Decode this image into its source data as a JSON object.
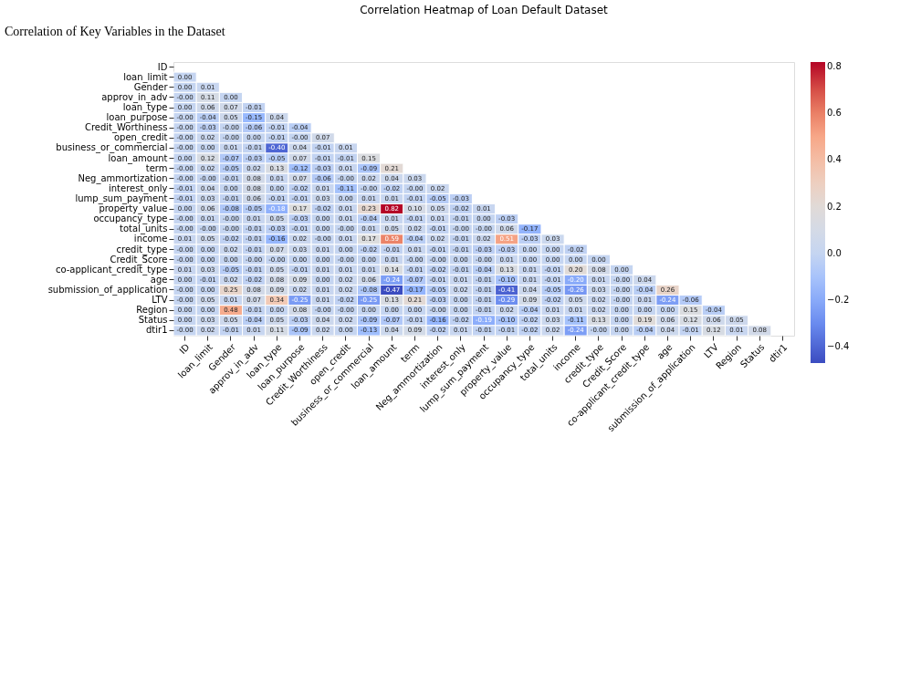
{
  "chart_data": {
    "type": "heatmap",
    "title": "Correlation Heatmap of Loan Default Dataset",
    "annotations": [
      "Correlation of Key Variables in the Dataset"
    ],
    "categories": [
      "ID",
      "loan_limit",
      "Gender",
      "approv_in_adv",
      "loan_type",
      "loan_purpose",
      "Credit_Worthiness",
      "open_credit",
      "business_or_commercial",
      "loan_amount",
      "term",
      "Neg_ammortization",
      "interest_only",
      "lump_sum_payment",
      "property_value",
      "occupancy_type",
      "total_units",
      "income",
      "credit_type",
      "Credit_Score",
      "co-applicant_credit_type",
      "age",
      "submission_of_application",
      "LTV",
      "Region",
      "Status",
      "dtir1"
    ],
    "y_categories": [
      "ID",
      "loan_limit",
      "Gender",
      "approv_in_adv",
      "loan_type",
      "loan_purpose",
      "Credit_Worthiness",
      "open_credit",
      "business_or_commercial",
      "loan_amount",
      "term",
      "Neg_ammortization",
      "interest_only",
      "lump_sum_payment",
      "property_value",
      "occupancy_type",
      "total_units",
      "income",
      "credit_type",
      "Credit_Score",
      "co-applicant_credit_type",
      "age",
      "submission_of_application",
      "LTV",
      "Region",
      "Status",
      "dtir1"
    ],
    "cells": [
      [
        null,
        null,
        null,
        null,
        null,
        null,
        null,
        null,
        null,
        null,
        null,
        null,
        null,
        null,
        null,
        null,
        null,
        null,
        null,
        null,
        null,
        null,
        null,
        null,
        null,
        null,
        null
      ],
      [
        0.0,
        null,
        null,
        null,
        null,
        null,
        null,
        null,
        null,
        null,
        null,
        null,
        null,
        null,
        null,
        null,
        null,
        null,
        null,
        null,
        null,
        null,
        null,
        null,
        null,
        null,
        null
      ],
      [
        0.0,
        0.01,
        null,
        null,
        null,
        null,
        null,
        null,
        null,
        null,
        null,
        null,
        null,
        null,
        null,
        null,
        null,
        null,
        null,
        null,
        null,
        null,
        null,
        null,
        null,
        null,
        null
      ],
      [
        0.0,
        0.11,
        0.0,
        null,
        null,
        null,
        null,
        null,
        null,
        null,
        null,
        null,
        null,
        null,
        null,
        null,
        null,
        null,
        null,
        null,
        null,
        null,
        null,
        null,
        null,
        null,
        null
      ],
      [
        0.0,
        0.06,
        0.07,
        -0.01,
        null,
        null,
        null,
        null,
        null,
        null,
        null,
        null,
        null,
        null,
        null,
        null,
        null,
        null,
        null,
        null,
        null,
        null,
        null,
        null,
        null,
        null,
        null
      ],
      [
        0.0,
        -0.04,
        0.05,
        -0.15,
        0.04,
        null,
        null,
        null,
        null,
        null,
        null,
        null,
        null,
        null,
        null,
        null,
        null,
        null,
        null,
        null,
        null,
        null,
        null,
        null,
        null,
        null,
        null
      ],
      [
        0.0,
        -0.03,
        0.0,
        -0.06,
        -0.01,
        -0.04,
        null,
        null,
        null,
        null,
        null,
        null,
        null,
        null,
        null,
        null,
        null,
        null,
        null,
        null,
        null,
        null,
        null,
        null,
        null,
        null,
        null
      ],
      [
        0.0,
        0.02,
        0.0,
        0.0,
        -0.01,
        0.0,
        0.07,
        null,
        null,
        null,
        null,
        null,
        null,
        null,
        null,
        null,
        null,
        null,
        null,
        null,
        null,
        null,
        null,
        null,
        null,
        null,
        null
      ],
      [
        0.0,
        0.0,
        0.01,
        -0.01,
        -0.4,
        0.04,
        -0.01,
        0.01,
        null,
        null,
        null,
        null,
        null,
        null,
        null,
        null,
        null,
        null,
        null,
        null,
        null,
        null,
        null,
        null,
        null,
        null,
        null
      ],
      [
        0.0,
        0.12,
        -0.07,
        -0.03,
        -0.05,
        0.07,
        -0.01,
        -0.01,
        0.15,
        null,
        null,
        null,
        null,
        null,
        null,
        null,
        null,
        null,
        null,
        null,
        null,
        null,
        null,
        null,
        null,
        null,
        null
      ],
      [
        0.0,
        0.02,
        -0.05,
        0.02,
        0.13,
        -0.12,
        -0.03,
        0.01,
        -0.09,
        0.21,
        null,
        null,
        null,
        null,
        null,
        null,
        null,
        null,
        null,
        null,
        null,
        null,
        null,
        null,
        null,
        null,
        null
      ],
      [
        0.0,
        0.0,
        -0.01,
        0.08,
        0.01,
        0.07,
        -0.06,
        0.0,
        0.02,
        0.04,
        0.03,
        null,
        null,
        null,
        null,
        null,
        null,
        null,
        null,
        null,
        null,
        null,
        null,
        null,
        null,
        null,
        null
      ],
      [
        -0.01,
        0.04,
        0.0,
        0.08,
        0.0,
        -0.02,
        0.01,
        -0.11,
        0.0,
        -0.02,
        0.0,
        0.02,
        null,
        null,
        null,
        null,
        null,
        null,
        null,
        null,
        null,
        null,
        null,
        null,
        null,
        null,
        null
      ],
      [
        -0.01,
        0.03,
        -0.01,
        0.06,
        -0.01,
        -0.01,
        0.03,
        0.0,
        0.01,
        0.01,
        -0.01,
        -0.05,
        -0.03,
        null,
        null,
        null,
        null,
        null,
        null,
        null,
        null,
        null,
        null,
        null,
        null,
        null,
        null
      ],
      [
        0.0,
        0.06,
        -0.08,
        -0.05,
        -0.18,
        0.17,
        -0.02,
        0.01,
        0.23,
        0.82,
        0.1,
        0.05,
        -0.02,
        0.01,
        null,
        null,
        null,
        null,
        null,
        null,
        null,
        null,
        null,
        null,
        null,
        null,
        null
      ],
      [
        0.0,
        0.01,
        0.0,
        0.01,
        0.05,
        -0.03,
        0.0,
        0.01,
        -0.04,
        0.01,
        -0.01,
        0.01,
        -0.01,
        0.0,
        -0.03,
        null,
        null,
        null,
        null,
        null,
        null,
        null,
        null,
        null,
        null,
        null,
        null
      ],
      [
        0.0,
        0.0,
        0.0,
        -0.01,
        -0.03,
        -0.01,
        0.0,
        0.0,
        0.01,
        0.05,
        0.02,
        -0.01,
        0.0,
        0.0,
        0.06,
        -0.17,
        null,
        null,
        null,
        null,
        null,
        null,
        null,
        null,
        null,
        null,
        null
      ],
      [
        0.01,
        0.05,
        -0.02,
        -0.01,
        -0.16,
        0.02,
        0.0,
        0.01,
        0.17,
        0.59,
        -0.04,
        0.02,
        -0.01,
        0.02,
        0.51,
        -0.03,
        0.03,
        null,
        null,
        null,
        null,
        null,
        null,
        null,
        null,
        null,
        null
      ],
      [
        0.0,
        0.0,
        0.02,
        -0.01,
        0.07,
        0.03,
        0.01,
        0.0,
        -0.02,
        -0.01,
        0.01,
        -0.01,
        -0.01,
        -0.03,
        -0.03,
        0.0,
        0.0,
        -0.02,
        null,
        null,
        null,
        null,
        null,
        null,
        null,
        null,
        null
      ],
      [
        0.0,
        0.0,
        0.0,
        0.0,
        0.0,
        0.0,
        0.0,
        0.0,
        0.0,
        0.01,
        0.0,
        0.0,
        0.0,
        0.0,
        0.01,
        0.0,
        0.0,
        0.0,
        0.0,
        null,
        null,
        null,
        null,
        null,
        null,
        null,
        null
      ],
      [
        0.01,
        0.03,
        -0.05,
        -0.01,
        0.05,
        -0.01,
        0.01,
        0.01,
        0.01,
        0.14,
        -0.01,
        -0.02,
        -0.01,
        -0.04,
        0.13,
        0.01,
        -0.01,
        0.2,
        0.08,
        0.0,
        null,
        null,
        null,
        null,
        null,
        null,
        null
      ],
      [
        0.0,
        -0.01,
        0.02,
        -0.02,
        0.08,
        0.09,
        0.0,
        0.02,
        0.06,
        -0.24,
        -0.07,
        -0.01,
        0.01,
        -0.01,
        -0.1,
        0.01,
        -0.01,
        -0.2,
        0.01,
        0.0,
        0.04,
        null,
        null,
        null,
        null,
        null,
        null
      ],
      [
        0.0,
        0.0,
        0.25,
        0.08,
        0.09,
        0.02,
        0.01,
        0.02,
        -0.08,
        -0.47,
        -0.17,
        -0.05,
        0.02,
        -0.01,
        -0.41,
        0.04,
        -0.05,
        -0.26,
        0.03,
        0.0,
        -0.04,
        0.26,
        null,
        null,
        null,
        null,
        null
      ],
      [
        0.0,
        0.05,
        0.01,
        0.07,
        0.34,
        -0.25,
        0.01,
        -0.02,
        -0.25,
        0.13,
        0.21,
        -0.03,
        0.0,
        -0.01,
        -0.29,
        0.09,
        -0.02,
        0.05,
        0.02,
        0.0,
        0.01,
        -0.24,
        -0.06,
        null,
        null,
        null,
        null
      ],
      [
        0.0,
        0.0,
        0.48,
        -0.01,
        0.0,
        0.08,
        0.0,
        0.0,
        0.0,
        0.0,
        0.0,
        0.0,
        0.0,
        -0.01,
        0.02,
        -0.04,
        0.01,
        0.01,
        0.02,
        0.0,
        0.0,
        0.0,
        0.15,
        -0.04,
        null,
        null,
        null
      ],
      [
        0.0,
        0.03,
        0.05,
        -0.04,
        0.05,
        -0.03,
        0.04,
        0.02,
        -0.09,
        -0.07,
        -0.01,
        -0.16,
        -0.02,
        -0.19,
        -0.1,
        -0.02,
        0.03,
        -0.11,
        0.13,
        0.0,
        0.19,
        0.06,
        0.12,
        0.06,
        0.05,
        null,
        null
      ],
      [
        0.0,
        0.02,
        -0.01,
        0.01,
        0.11,
        -0.09,
        0.02,
        0.0,
        -0.13,
        0.04,
        0.09,
        -0.02,
        0.01,
        -0.01,
        -0.01,
        -0.02,
        0.02,
        -0.24,
        0.0,
        0.0,
        -0.04,
        0.04,
        -0.01,
        0.12,
        0.01,
        0.08,
        null
      ]
    ],
    "cell_labels": [
      [
        null,
        null,
        null,
        null,
        null,
        null,
        null,
        null,
        null,
        null,
        null,
        null,
        null,
        null,
        null,
        null,
        null,
        null,
        null,
        null,
        null,
        null,
        null,
        null,
        null,
        null,
        null
      ],
      [
        "0.00",
        null,
        null,
        null,
        null,
        null,
        null,
        null,
        null,
        null,
        null,
        null,
        null,
        null,
        null,
        null,
        null,
        null,
        null,
        null,
        null,
        null,
        null,
        null,
        null,
        null,
        null
      ],
      [
        "0.00",
        "0.01",
        null,
        null,
        null,
        null,
        null,
        null,
        null,
        null,
        null,
        null,
        null,
        null,
        null,
        null,
        null,
        null,
        null,
        null,
        null,
        null,
        null,
        null,
        null,
        null,
        null
      ],
      [
        "-0.00",
        "0.11",
        "0.00",
        null,
        null,
        null,
        null,
        null,
        null,
        null,
        null,
        null,
        null,
        null,
        null,
        null,
        null,
        null,
        null,
        null,
        null,
        null,
        null,
        null,
        null,
        null,
        null
      ],
      [
        "0.00",
        "0.06",
        "0.07",
        "-0.01",
        null,
        null,
        null,
        null,
        null,
        null,
        null,
        null,
        null,
        null,
        null,
        null,
        null,
        null,
        null,
        null,
        null,
        null,
        null,
        null,
        null,
        null,
        null
      ],
      [
        "-0.00",
        "-0.04",
        "0.05",
        "-0.15",
        "0.04",
        null,
        null,
        null,
        null,
        null,
        null,
        null,
        null,
        null,
        null,
        null,
        null,
        null,
        null,
        null,
        null,
        null,
        null,
        null,
        null,
        null,
        null
      ],
      [
        "-0.00",
        "-0.03",
        "-0.00",
        "-0.06",
        "-0.01",
        "-0.04",
        null,
        null,
        null,
        null,
        null,
        null,
        null,
        null,
        null,
        null,
        null,
        null,
        null,
        null,
        null,
        null,
        null,
        null,
        null,
        null,
        null
      ],
      [
        "-0.00",
        "0.02",
        "-0.00",
        "0.00",
        "-0.01",
        "-0.00",
        "0.07",
        null,
        null,
        null,
        null,
        null,
        null,
        null,
        null,
        null,
        null,
        null,
        null,
        null,
        null,
        null,
        null,
        null,
        null,
        null,
        null
      ],
      [
        "-0.00",
        "0.00",
        "0.01",
        "-0.01",
        "-0.40",
        "0.04",
        "-0.01",
        "0.01",
        null,
        null,
        null,
        null,
        null,
        null,
        null,
        null,
        null,
        null,
        null,
        null,
        null,
        null,
        null,
        null,
        null,
        null,
        null
      ],
      [
        "0.00",
        "0.12",
        "-0.07",
        "-0.03",
        "-0.05",
        "0.07",
        "-0.01",
        "-0.01",
        "0.15",
        null,
        null,
        null,
        null,
        null,
        null,
        null,
        null,
        null,
        null,
        null,
        null,
        null,
        null,
        null,
        null,
        null,
        null
      ],
      [
        "-0.00",
        "0.02",
        "-0.05",
        "0.02",
        "0.13",
        "-0.12",
        "-0.03",
        "0.01",
        "-0.09",
        "0.21",
        null,
        null,
        null,
        null,
        null,
        null,
        null,
        null,
        null,
        null,
        null,
        null,
        null,
        null,
        null,
        null,
        null
      ],
      [
        "-0.00",
        "-0.00",
        "-0.01",
        "0.08",
        "0.01",
        "0.07",
        "-0.06",
        "-0.00",
        "0.02",
        "0.04",
        "0.03",
        null,
        null,
        null,
        null,
        null,
        null,
        null,
        null,
        null,
        null,
        null,
        null,
        null,
        null,
        null,
        null
      ],
      [
        "-0.01",
        "0.04",
        "0.00",
        "0.08",
        "0.00",
        "-0.02",
        "0.01",
        "-0.11",
        "-0.00",
        "-0.02",
        "-0.00",
        "0.02",
        null,
        null,
        null,
        null,
        null,
        null,
        null,
        null,
        null,
        null,
        null,
        null,
        null,
        null,
        null
      ],
      [
        "-0.01",
        "0.03",
        "-0.01",
        "0.06",
        "-0.01",
        "-0.01",
        "0.03",
        "0.00",
        "0.01",
        "0.01",
        "-0.01",
        "-0.05",
        "-0.03",
        null,
        null,
        null,
        null,
        null,
        null,
        null,
        null,
        null,
        null,
        null,
        null,
        null,
        null
      ],
      [
        "0.00",
        "0.06",
        "-0.08",
        "-0.05",
        "-0.18",
        "0.17",
        "-0.02",
        "0.01",
        "0.23",
        "0.82",
        "0.10",
        "0.05",
        "-0.02",
        "0.01",
        null,
        null,
        null,
        null,
        null,
        null,
        null,
        null,
        null,
        null,
        null,
        null,
        null
      ],
      [
        "-0.00",
        "0.01",
        "-0.00",
        "0.01",
        "0.05",
        "-0.03",
        "0.00",
        "0.01",
        "-0.04",
        "0.01",
        "-0.01",
        "0.01",
        "-0.01",
        "0.00",
        "-0.03",
        null,
        null,
        null,
        null,
        null,
        null,
        null,
        null,
        null,
        null,
        null,
        null
      ],
      [
        "-0.00",
        "-0.00",
        "-0.00",
        "-0.01",
        "-0.03",
        "-0.01",
        "0.00",
        "-0.00",
        "0.01",
        "0.05",
        "0.02",
        "-0.01",
        "-0.00",
        "-0.00",
        "0.06",
        "-0.17",
        null,
        null,
        null,
        null,
        null,
        null,
        null,
        null,
        null,
        null,
        null
      ],
      [
        "0.01",
        "0.05",
        "-0.02",
        "-0.01",
        "-0.16",
        "0.02",
        "-0.00",
        "0.01",
        "0.17",
        "0.59",
        "-0.04",
        "0.02",
        "-0.01",
        "0.02",
        "0.51",
        "-0.03",
        "0.03",
        null,
        null,
        null,
        null,
        null,
        null,
        null,
        null,
        null,
        null
      ],
      [
        "-0.00",
        "0.00",
        "0.02",
        "-0.01",
        "0.07",
        "0.03",
        "0.01",
        "0.00",
        "-0.02",
        "-0.01",
        "0.01",
        "-0.01",
        "-0.01",
        "-0.03",
        "-0.03",
        "0.00",
        "0.00",
        "-0.02",
        null,
        null,
        null,
        null,
        null,
        null,
        null,
        null,
        null
      ],
      [
        "-0.00",
        "0.00",
        "0.00",
        "-0.00",
        "-0.00",
        "0.00",
        "0.00",
        "-0.00",
        "0.00",
        "0.01",
        "-0.00",
        "-0.00",
        "0.00",
        "-0.00",
        "0.01",
        "0.00",
        "0.00",
        "0.00",
        "0.00",
        null,
        null,
        null,
        null,
        null,
        null,
        null,
        null
      ],
      [
        "0.01",
        "0.03",
        "-0.05",
        "-0.01",
        "0.05",
        "-0.01",
        "0.01",
        "0.01",
        "0.01",
        "0.14",
        "-0.01",
        "-0.02",
        "-0.01",
        "-0.04",
        "0.13",
        "0.01",
        "-0.01",
        "0.20",
        "0.08",
        "0.00",
        null,
        null,
        null,
        null,
        null,
        null,
        null
      ],
      [
        "0.00",
        "-0.01",
        "0.02",
        "-0.02",
        "0.08",
        "0.09",
        "0.00",
        "0.02",
        "0.06",
        "-0.24",
        "-0.07",
        "-0.01",
        "0.01",
        "-0.01",
        "-0.10",
        "0.01",
        "-0.01",
        "-0.20",
        "0.01",
        "-0.00",
        "0.04",
        null,
        null,
        null,
        null,
        null,
        null
      ],
      [
        "-0.00",
        "0.00",
        "0.25",
        "0.08",
        "0.09",
        "0.02",
        "0.01",
        "0.02",
        "-0.08",
        "-0.47",
        "-0.17",
        "-0.05",
        "0.02",
        "-0.01",
        "-0.41",
        "0.04",
        "-0.05",
        "-0.26",
        "0.03",
        "-0.00",
        "-0.04",
        "0.26",
        null,
        null,
        null,
        null,
        null
      ],
      [
        "-0.00",
        "0.05",
        "0.01",
        "0.07",
        "0.34",
        "-0.25",
        "0.01",
        "-0.02",
        "-0.25",
        "0.13",
        "0.21",
        "-0.03",
        "0.00",
        "-0.01",
        "-0.29",
        "0.09",
        "-0.02",
        "0.05",
        "0.02",
        "-0.00",
        "0.01",
        "-0.24",
        "-0.06",
        null,
        null,
        null,
        null
      ],
      [
        "0.00",
        "0.00",
        "0.48",
        "-0.01",
        "0.00",
        "0.08",
        "-0.00",
        "-0.00",
        "0.00",
        "0.00",
        "0.00",
        "-0.00",
        "0.00",
        "-0.01",
        "0.02",
        "-0.04",
        "0.01",
        "0.01",
        "0.02",
        "0.00",
        "0.00",
        "0.00",
        "0.15",
        "-0.04",
        null,
        null,
        null
      ],
      [
        "0.00",
        "0.03",
        "0.05",
        "-0.04",
        "0.05",
        "-0.03",
        "0.04",
        "0.02",
        "-0.09",
        "-0.07",
        "-0.01",
        "-0.16",
        "-0.02",
        "-0.19",
        "-0.10",
        "-0.02",
        "0.03",
        "-0.11",
        "0.13",
        "0.00",
        "0.19",
        "0.06",
        "0.12",
        "0.06",
        "0.05",
        null,
        null
      ],
      [
        "-0.00",
        "0.02",
        "-0.01",
        "0.01",
        "0.11",
        "-0.09",
        "0.02",
        "0.00",
        "-0.13",
        "0.04",
        "0.09",
        "-0.02",
        "0.01",
        "-0.01",
        "-0.01",
        "-0.02",
        "0.02",
        "-0.24",
        "-0.00",
        "0.00",
        "-0.04",
        "0.04",
        "-0.01",
        "0.12",
        "0.01",
        "0.08",
        null
      ]
    ],
    "clim": [
      -0.47,
      0.82
    ],
    "cticks": [
      {
        "value": -0.4,
        "label": "−0.4"
      },
      {
        "value": -0.2,
        "label": "−0.2"
      },
      {
        "value": 0,
        "label": "0.0"
      },
      0.2,
      0.4,
      0.6,
      0.8
    ]
  }
}
